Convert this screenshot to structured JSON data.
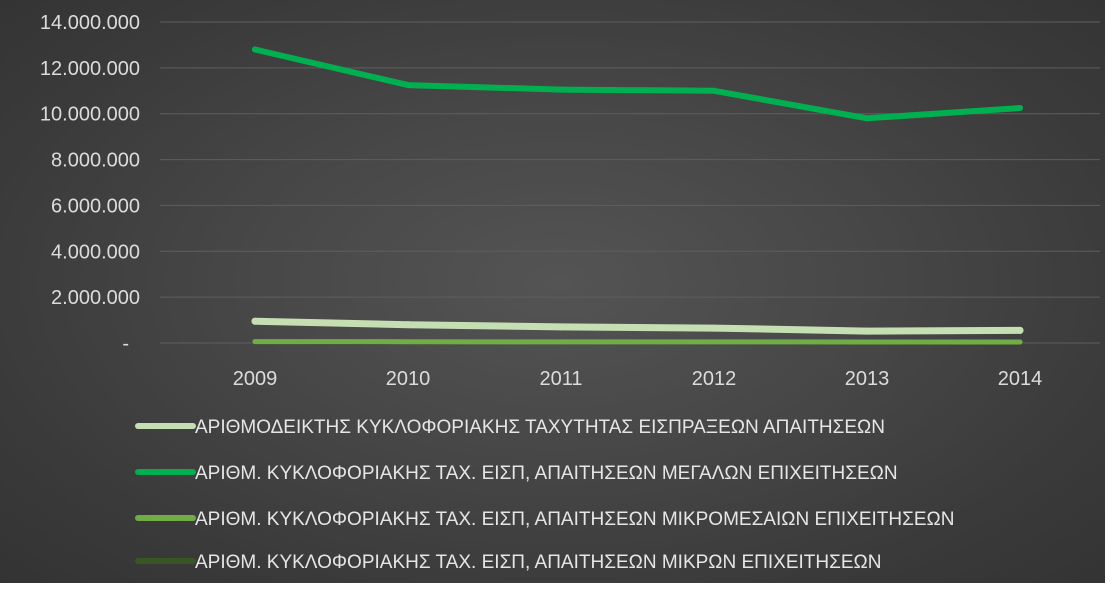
{
  "chart_data": {
    "type": "line",
    "title": "",
    "xlabel": "",
    "ylabel": "",
    "categories": [
      "2009",
      "2010",
      "2011",
      "2012",
      "2013",
      "2014"
    ],
    "ylim": [
      0,
      14000000
    ],
    "y_ticks": [
      0,
      2000000,
      4000000,
      6000000,
      8000000,
      10000000,
      12000000,
      14000000
    ],
    "y_tick_labels": [
      "-",
      "2.000.000",
      "4.000.000",
      "6.000.000",
      "8.000.000",
      "10.000.000",
      "12.000.000",
      "14.000.000"
    ],
    "grid": "horizontal",
    "legend_position": "bottom",
    "series": [
      {
        "name": "ΑΡΙΘΜΟΔΕΙΚΤΗΣ ΚΥΚΛΟΦΟΡΙΑΚΗΣ ΤΑΧΥΤΗΤΑΣ ΕΙΣΠΡΑΞΕΩΝ ΑΠΑΙΤΗΣΕΩΝ",
        "color": "#c5dfb3",
        "values": [
          950000,
          800000,
          700000,
          650000,
          520000,
          550000
        ]
      },
      {
        "name": "ΑΡΙΘΜ. ΚΥΚΛΟΦΟΡΙΑΚΗΣ ΤΑΧ. ΕΙΣΠ, ΑΠΑΙΤΗΣΕΩΝ ΜΕΓΑΛΩΝ ΕΠΙΧΕΙΤΗΣΕΩΝ",
        "color": "#00b050",
        "values": [
          12800000,
          11250000,
          11050000,
          11000000,
          9800000,
          10250000
        ]
      },
      {
        "name": "ΑΡΙΘΜ. ΚΥΚΛΟΦΟΡΙΑΚΗΣ ΤΑΧ. ΕΙΣΠ, ΑΠΑΙΤΗΣΕΩΝ ΜΙΚΡΟΜΕΣΑΙΩΝ ΕΠΙΧΕΙΤΗΣΕΩΝ",
        "color": "#70ad47",
        "values": [
          60000,
          55000,
          50000,
          50000,
          45000,
          45000
        ]
      },
      {
        "name": "ΑΡΙΘΜ. ΚΥΚΛΟΦΟΡΙΑΚΗΣ ΤΑΧ. ΕΙΣΠ, ΑΠΑΙΤΗΣΕΩΝ ΜΙΚΡΩΝ ΕΠΙΧΕΙΤΗΣΕΩΝ",
        "color": "#375623",
        "values": [
          50000,
          50000,
          45000,
          45000,
          40000,
          40000
        ]
      }
    ]
  }
}
